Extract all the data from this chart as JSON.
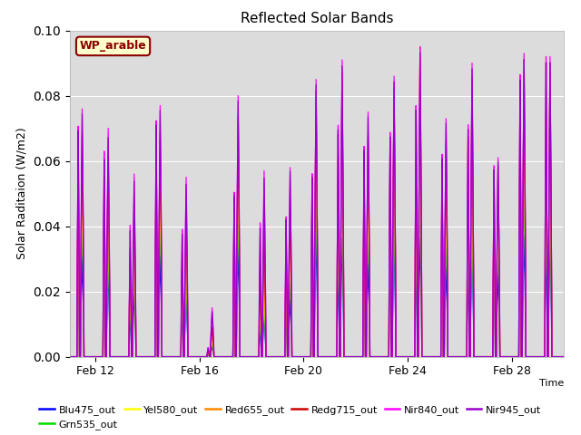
{
  "title": "Reflected Solar Bands",
  "ylabel": "Solar Raditaion (W/m2)",
  "xlabel": "Time",
  "annotation_text": "WP_arable",
  "annotation_bg": "#ffffcc",
  "annotation_border": "#8b0000",
  "annotation_text_color": "#8b0000",
  "ylim": [
    0,
    0.1
  ],
  "plot_bg": "#dcdcdc",
  "grid_color": "white",
  "series": [
    {
      "name": "Blu475_out",
      "color": "#0000ff"
    },
    {
      "name": "Grn535_out",
      "color": "#00dd00"
    },
    {
      "name": "Yel580_out",
      "color": "#ffff00"
    },
    {
      "name": "Red655_out",
      "color": "#ff8800"
    },
    {
      "name": "Redg715_out",
      "color": "#cc0000"
    },
    {
      "name": "Nir840_out",
      "color": "#ff00ff"
    },
    {
      "name": "Nir945_out",
      "color": "#9900cc"
    }
  ],
  "xtick_labels": [
    "Feb 12",
    "Feb 16",
    "Feb 20",
    "Feb 24",
    "Feb 28"
  ],
  "n_days": 19,
  "day_peaks_nir840": [
    0.076,
    0.07,
    0.056,
    0.077,
    0.055,
    0.015,
    0.08,
    0.057,
    0.058,
    0.085,
    0.091,
    0.075,
    0.086,
    0.095,
    0.073,
    0.09,
    0.061,
    0.093,
    0.092
  ],
  "blue_factors": [
    0.4,
    0.38,
    0.35,
    0.4,
    0.35,
    0.2,
    0.42,
    0.22,
    0.3,
    0.44,
    0.4,
    0.38,
    0.42,
    0.38,
    0.38,
    0.38,
    0.42,
    0.4,
    0.4
  ],
  "green_factors": [
    0.55,
    0.52,
    0.48,
    0.55,
    0.48,
    0.28,
    0.57,
    0.3,
    0.42,
    0.6,
    0.58,
    0.52,
    0.58,
    0.53,
    0.52,
    0.53,
    0.57,
    0.56,
    0.56
  ],
  "yellow_factors": [
    0.68,
    0.65,
    0.6,
    0.68,
    0.6,
    0.35,
    0.7,
    0.4,
    0.55,
    0.75,
    0.72,
    0.65,
    0.72,
    0.66,
    0.65,
    0.66,
    0.7,
    0.7,
    0.7
  ],
  "red_factors": [
    0.8,
    0.78,
    0.73,
    0.8,
    0.73,
    0.45,
    0.82,
    0.55,
    0.68,
    0.88,
    0.85,
    0.78,
    0.86,
    0.78,
    0.78,
    0.78,
    0.82,
    0.82,
    0.82
  ],
  "redg_factors": [
    0.9,
    0.88,
    0.83,
    0.9,
    0.83,
    0.6,
    0.92,
    0.68,
    0.8,
    0.96,
    0.96,
    0.9,
    0.96,
    1.0,
    0.9,
    0.95,
    0.96,
    0.98,
    0.98
  ],
  "nir840_factors": [
    1.0,
    1.0,
    1.0,
    1.0,
    1.0,
    1.0,
    1.0,
    1.0,
    1.0,
    1.0,
    1.0,
    1.0,
    1.0,
    1.0,
    1.0,
    1.0,
    1.0,
    1.0,
    1.0
  ],
  "nir945_factors": [
    0.98,
    0.96,
    0.96,
    0.98,
    0.96,
    0.92,
    0.98,
    0.96,
    0.98,
    0.98,
    0.98,
    0.98,
    0.98,
    0.98,
    0.98,
    0.98,
    0.98,
    0.98,
    0.98
  ],
  "secondary_peak_ratios": [
    0.93,
    0.9,
    0.72,
    0.94,
    0.71,
    0.19,
    0.63,
    0.72,
    0.74,
    0.66,
    0.78,
    0.86,
    0.8,
    0.81,
    0.85,
    0.79,
    0.96,
    0.93,
    1.0
  ]
}
